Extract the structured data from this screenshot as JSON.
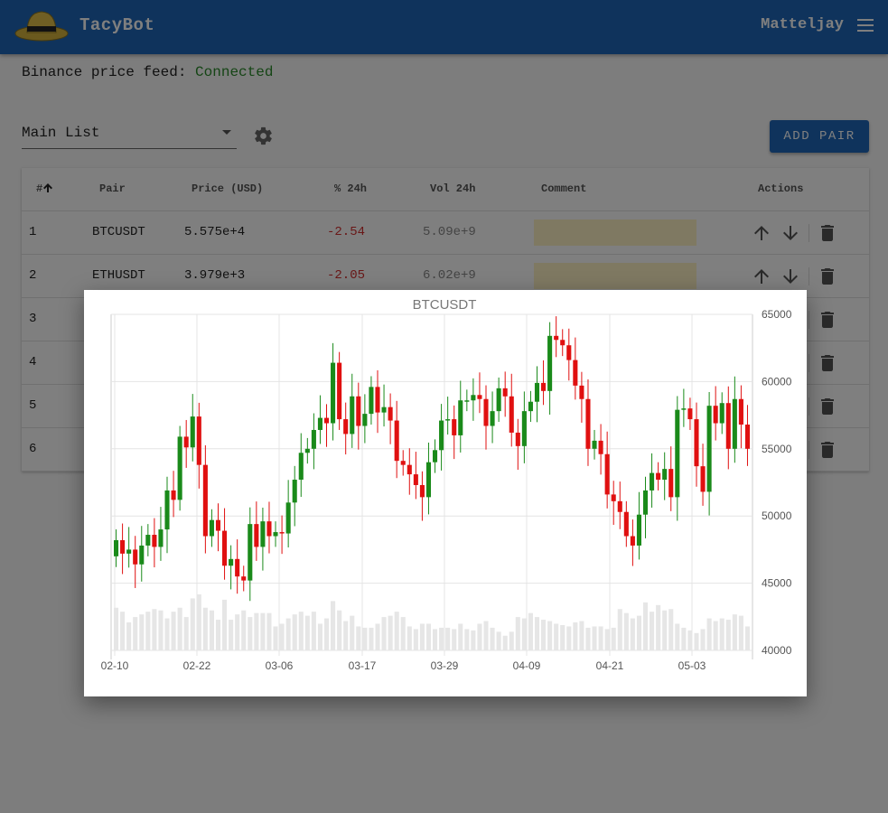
{
  "app": {
    "title": "TacyBot",
    "user": "Matteljay",
    "logo_icon": "hat-icon",
    "menu_icon": "menu-icon",
    "accent": "#1f67b8"
  },
  "feed": {
    "label": "Binance price feed:",
    "status": "Connected",
    "status_color": "#2b8a2b"
  },
  "list_select": {
    "value": "Main List",
    "settings_icon": "gear-icon"
  },
  "add_pair_label": "ADD PAIR",
  "table": {
    "headers": [
      "#",
      "Pair",
      "Price (USD)",
      "% 24h",
      "Vol 24h",
      "Comment",
      "Actions"
    ],
    "rows": [
      {
        "idx": "1",
        "pair": "BTCUSDT",
        "price": "5.575e+4",
        "change": "-2.54",
        "vol": "5.09e+9",
        "comment": ""
      },
      {
        "idx": "2",
        "pair": "ETHUSDT",
        "price": "3.979e+3",
        "change": "-2.05",
        "vol": "6.02e+9",
        "comment": ""
      },
      {
        "idx": "3",
        "pair": "",
        "price": "",
        "change": "",
        "vol": "",
        "comment": ""
      },
      {
        "idx": "4",
        "pair": "",
        "price": "",
        "change": "",
        "vol": "",
        "comment": ""
      },
      {
        "idx": "5",
        "pair": "",
        "price": "",
        "change": "",
        "vol": "",
        "comment": ""
      },
      {
        "idx": "6",
        "pair": "",
        "price": "",
        "change": "",
        "vol": "",
        "comment": ""
      }
    ]
  },
  "chart_data": {
    "type": "candlestick",
    "title": "BTCUSDT",
    "x_tick_labels": [
      "02-10",
      "02-22",
      "03-06",
      "03-17",
      "03-29",
      "04-09",
      "04-21",
      "05-03"
    ],
    "y_tick_labels": [
      "65000",
      "60000",
      "55000",
      "50000",
      "45000",
      "40000"
    ],
    "ylim": [
      40000,
      65000
    ],
    "up_color": "#1a8a1a",
    "down_color": "#e01010",
    "volume_color": "#e6e6e6",
    "close": [
      48200,
      47200,
      47500,
      46400,
      47800,
      48600,
      47700,
      49000,
      51900,
      51200,
      55900,
      55100,
      57400,
      53800,
      48500,
      49700,
      48900,
      46300,
      46800,
      45500,
      45200,
      49400,
      47700,
      49600,
      48500,
      48800,
      48700,
      51000,
      52700,
      54700,
      55000,
      56400,
      57300,
      56900,
      61400,
      57200,
      56100,
      58900,
      56700,
      57600,
      59600,
      57700,
      58100,
      57100,
      54100,
      53800,
      53100,
      52300,
      51400,
      54000,
      54900,
      57100,
      57200,
      56000,
      58600,
      58600,
      59000,
      58700,
      56700,
      57800,
      59500,
      58900,
      56200,
      55200,
      57800,
      58500,
      59900,
      59300,
      63400,
      63100,
      62700,
      61600,
      59700,
      58700,
      55000,
      55600,
      54600,
      51600,
      51100,
      50300,
      48500,
      47800,
      50100,
      51900,
      53200,
      52700,
      53500,
      51400,
      57900,
      58000,
      57200,
      53700,
      51800,
      58200,
      56900,
      58400,
      55000,
      58700,
      56800,
      55000
    ],
    "volume": [
      3200,
      2900,
      2100,
      2500,
      2700,
      2900,
      3100,
      3000,
      2400,
      2900,
      3200,
      2500,
      3900,
      4200,
      3200,
      3000,
      2300,
      3800,
      2300,
      2700,
      3000,
      2500,
      2800,
      2800,
      2800,
      1800,
      2000,
      2400,
      2700,
      2900,
      2600,
      2900,
      2000,
      2400,
      3700,
      3000,
      2200,
      2600,
      1800,
      1700,
      1700,
      2000,
      2500,
      2600,
      2900,
      2500,
      1800,
      1600,
      2000,
      2000,
      1600,
      1700,
      1700,
      1600,
      2000,
      1600,
      1500,
      2000,
      2200,
      1700,
      1400,
      1100,
      1400,
      2500,
      2400,
      2800,
      2500,
      2300,
      2200,
      2000,
      1900,
      1800,
      2100,
      2200,
      1700,
      1800,
      1800,
      1600,
      1700,
      3100,
      2800,
      2400,
      2600,
      3600,
      2900,
      3400,
      3000,
      3100,
      2000,
      1700,
      1500,
      1300,
      1600,
      2400,
      2200,
      2400,
      2300,
      2700,
      2600,
      1800
    ]
  }
}
